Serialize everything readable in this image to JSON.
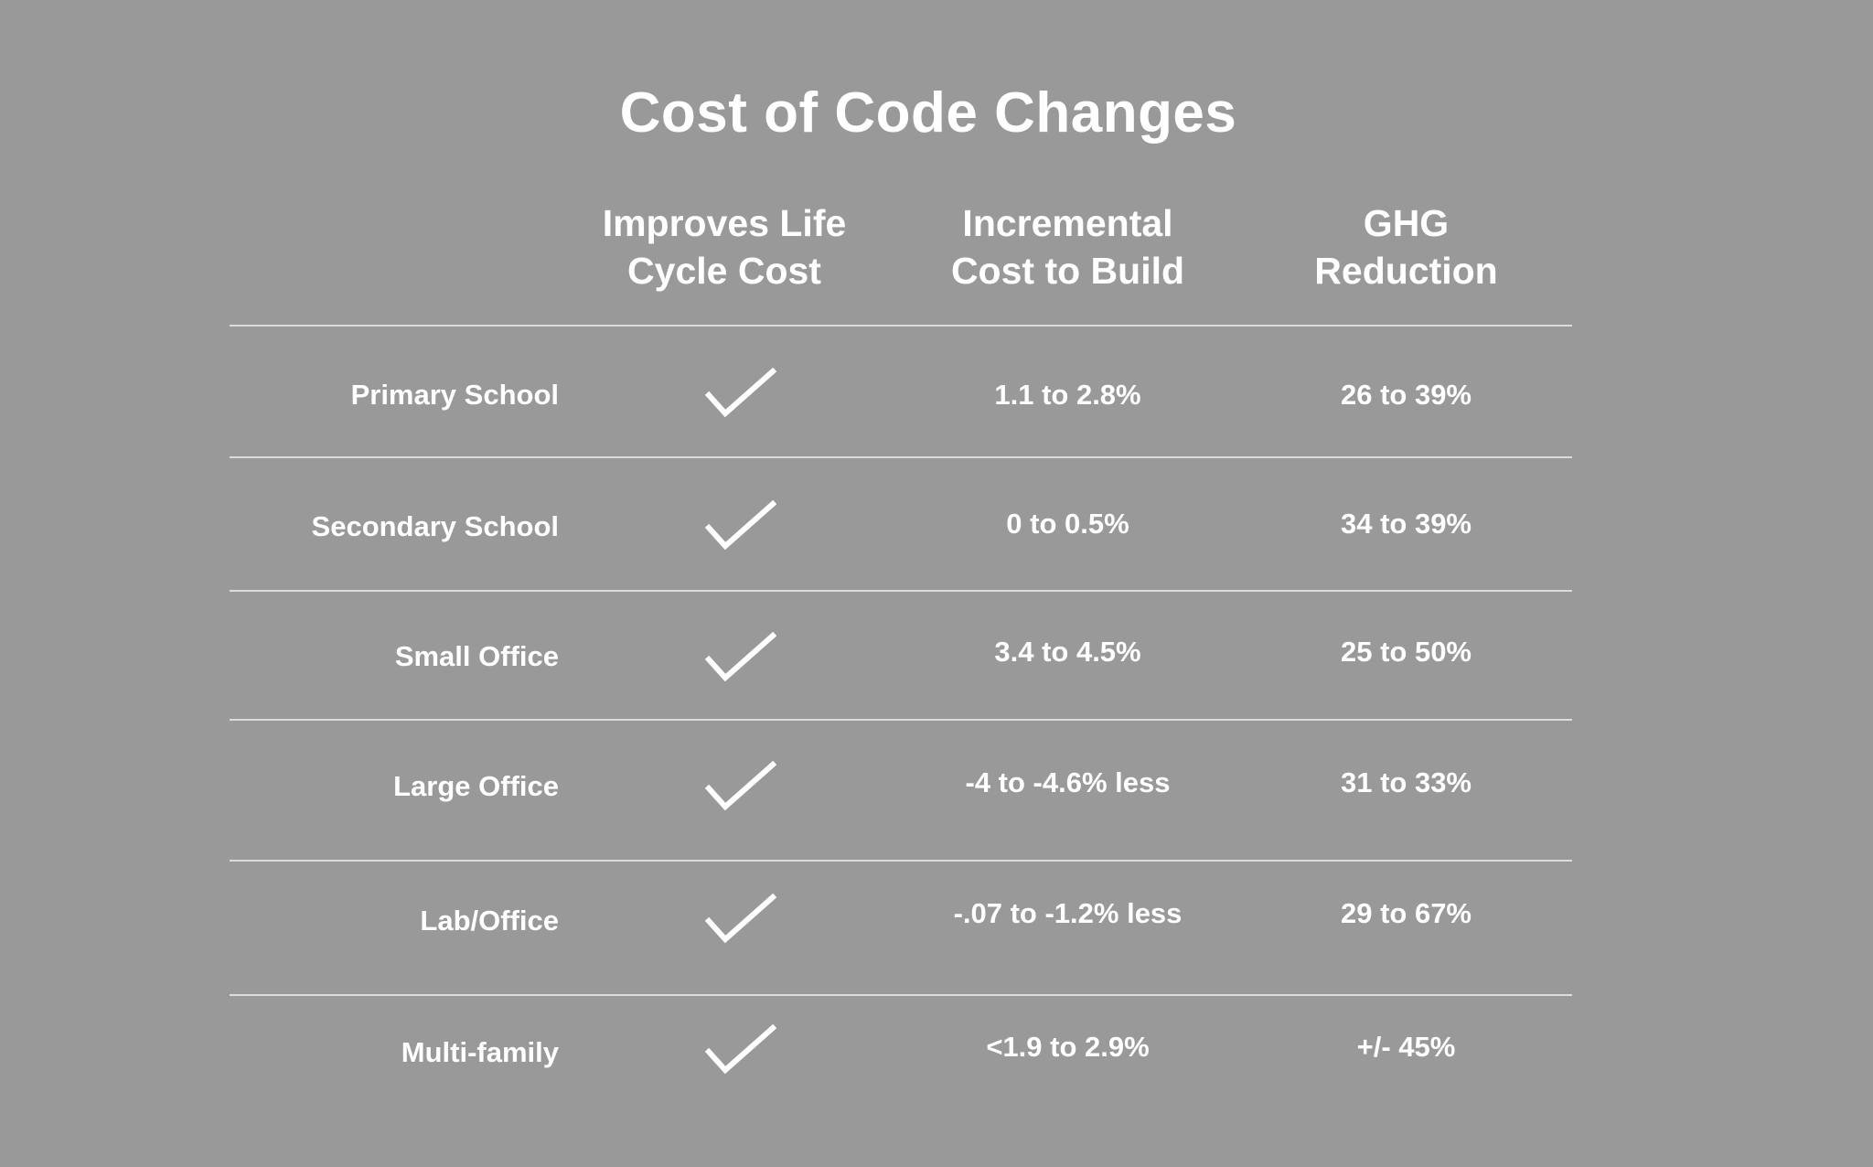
{
  "title": "Cost of Code Changes",
  "columns": [
    {
      "lines": [
        "Improves Life",
        "Cycle Cost"
      ]
    },
    {
      "lines": [
        "Incremental",
        "Cost to Build"
      ]
    },
    {
      "lines": [
        "GHG",
        "Reduction"
      ]
    }
  ],
  "rows": [
    {
      "label": "Primary School",
      "improves": "check-icon",
      "cost": "1.1 to 2.8%",
      "ghg": "26 to 39%"
    },
    {
      "label": "Secondary School",
      "improves": "check-icon",
      "cost": "0 to 0.5%",
      "ghg": "34 to 39%"
    },
    {
      "label": "Small Office",
      "improves": "check-icon",
      "cost": "3.4 to 4.5%",
      "ghg": "25 to 50%"
    },
    {
      "label": "Large Office",
      "improves": "check-icon",
      "cost": "-4 to -4.6% less",
      "ghg": "31 to 33%"
    },
    {
      "label": "Lab/Office",
      "improves": "check-icon",
      "cost": "-.07 to -1.2% less",
      "ghg": "29 to 67%"
    },
    {
      "label": "Multi-family",
      "improves": "check-icon",
      "cost": "<1.9 to 2.9%",
      "ghg": "+/- 45%"
    }
  ],
  "colors": {
    "background": "#999999",
    "text": "#ffffff",
    "rule": "#dcdcdc"
  }
}
